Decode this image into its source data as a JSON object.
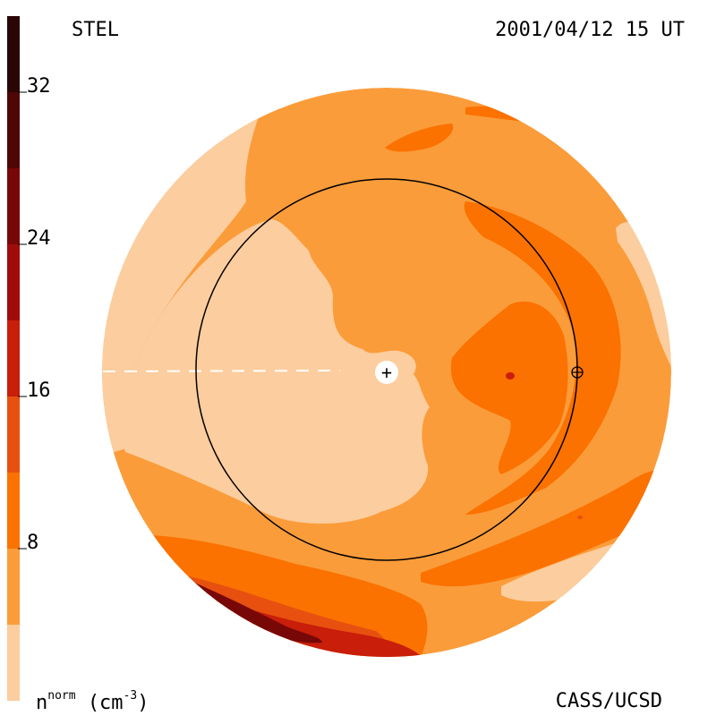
{
  "header": {
    "left_label": "STEL",
    "right_label": "2001/04/12 15 UT"
  },
  "footer": {
    "right_label": "CASS/UCSD"
  },
  "colorbar": {
    "unit_base": "n",
    "unit_sup": "norm",
    "unit_rest": "(cm",
    "unit_exp": "-3",
    "unit_close": ")",
    "range": [
      0,
      36
    ],
    "ticks": [
      {
        "value": 32,
        "label": "32"
      },
      {
        "value": 24,
        "label": "24"
      },
      {
        "value": 16,
        "label": "16"
      },
      {
        "value": 8,
        "label": "8"
      }
    ],
    "bands": [
      {
        "from": 0,
        "to": 4,
        "color": "#fccd9e"
      },
      {
        "from": 4,
        "to": 8,
        "color": "#fb9c3a"
      },
      {
        "from": 8,
        "to": 12,
        "color": "#fb7200"
      },
      {
        "from": 12,
        "to": 16,
        "color": "#e85010"
      },
      {
        "from": 16,
        "to": 20,
        "color": "#c81e0a"
      },
      {
        "from": 20,
        "to": 24,
        "color": "#a00c0a"
      },
      {
        "from": 24,
        "to": 28,
        "color": "#780808"
      },
      {
        "from": 28,
        "to": 32,
        "color": "#4e0606"
      },
      {
        "from": 32,
        "to": 36,
        "color": "#2a0604"
      }
    ]
  },
  "map": {
    "colors": {
      "lightest": "#fccd9e",
      "light": "#fb9c3a",
      "medium": "#fb7200",
      "dark": "#e85010",
      "darker": "#c81e0a",
      "darkest": "#780808",
      "outline": "#000000",
      "sun": "#ffffff"
    },
    "sun_symbol": "+",
    "earth_symbol": "⊕"
  }
}
